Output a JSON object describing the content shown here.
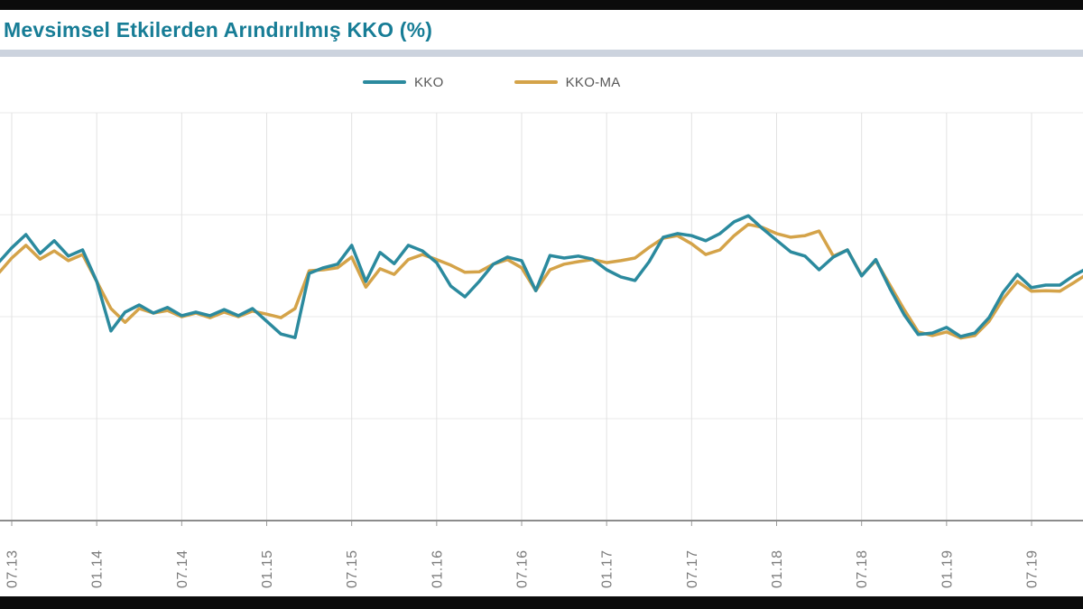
{
  "header": {
    "title": "Mevsimsel Etkilerden Arındırılmış KKO (%)"
  },
  "legend": {
    "items": [
      {
        "label": "KKO",
        "color": "#2b8a9e"
      },
      {
        "label": "KKO-MA",
        "color": "#d4a349"
      }
    ]
  },
  "chart_data": {
    "type": "line",
    "title": "Mevsimsel Etkilerden Arındırılmış KKO (%)",
    "xlabel": "",
    "ylabel": "",
    "x_months": [
      "06.13",
      "07.13",
      "08.13",
      "09.13",
      "10.13",
      "11.13",
      "12.13",
      "01.14",
      "02.14",
      "03.14",
      "04.14",
      "05.14",
      "06.14",
      "07.14",
      "08.14",
      "09.14",
      "10.14",
      "11.14",
      "12.14",
      "01.15",
      "02.15",
      "03.15",
      "04.15",
      "05.15",
      "06.15",
      "07.15",
      "08.15",
      "09.15",
      "10.15",
      "11.15",
      "12.15",
      "01.16",
      "02.16",
      "03.16",
      "04.16",
      "05.16",
      "06.16",
      "07.16",
      "08.16",
      "09.16",
      "10.16",
      "11.16",
      "12.16",
      "01.17",
      "02.17",
      "03.17",
      "04.17",
      "05.17",
      "06.17",
      "07.17",
      "08.17",
      "09.17",
      "10.17",
      "11.17",
      "12.17",
      "01.18",
      "02.18",
      "03.18",
      "04.18",
      "05.18",
      "06.18",
      "07.18",
      "08.18",
      "09.18",
      "10.18",
      "11.18",
      "12.18",
      "01.19",
      "02.19",
      "03.19",
      "04.19",
      "05.19",
      "06.19",
      "07.19",
      "08.19",
      "09.19",
      "10.19",
      "11.19"
    ],
    "x_tick_labels": [
      "07.13",
      "01.14",
      "07.14",
      "01.15",
      "07.15",
      "01.16",
      "07.16",
      "01.17",
      "07.17",
      "01.18",
      "07.18",
      "01.19",
      "07.19"
    ],
    "x_tick_start_index": 1,
    "x_tick_every": 6,
    "series": [
      {
        "name": "KKO",
        "color": "#2b8a9e",
        "values": [
          77.04,
          77.35,
          77.61,
          77.24,
          77.49,
          77.19,
          77.31,
          76.69,
          75.72,
          76.09,
          76.23,
          76.07,
          76.18,
          76.02,
          76.09,
          76.02,
          76.14,
          76.02,
          76.16,
          75.91,
          75.66,
          75.59,
          76.85,
          76.96,
          77.03,
          77.4,
          76.69,
          77.26,
          77.04,
          77.4,
          77.29,
          77.06,
          76.6,
          76.39,
          76.69,
          77.03,
          77.17,
          77.1,
          76.51,
          77.2,
          77.15,
          77.19,
          77.13,
          76.92,
          76.78,
          76.71,
          77.08,
          77.56,
          77.63,
          77.59,
          77.49,
          77.63,
          77.86,
          77.98,
          77.73,
          77.5,
          77.27,
          77.19,
          76.92,
          77.17,
          77.31,
          76.8,
          77.12,
          76.55,
          76.04,
          75.65,
          75.68,
          75.79,
          75.61,
          75.68,
          75.98,
          76.48,
          76.83,
          76.57,
          76.62,
          76.62,
          76.81,
          76.96
        ]
      },
      {
        "name": "KKO-MA",
        "color": "#d4a349",
        "values": [
          76.83,
          77.15,
          77.4,
          77.13,
          77.29,
          77.1,
          77.22,
          76.69,
          76.16,
          75.89,
          76.16,
          76.07,
          76.12,
          76.0,
          76.07,
          75.98,
          76.09,
          76.0,
          76.11,
          76.05,
          75.98,
          76.16,
          76.9,
          76.92,
          76.96,
          77.17,
          76.58,
          76.94,
          76.83,
          77.12,
          77.22,
          77.12,
          77.01,
          76.87,
          76.88,
          77.03,
          77.12,
          76.96,
          76.51,
          76.92,
          77.03,
          77.08,
          77.12,
          77.06,
          77.1,
          77.15,
          77.36,
          77.54,
          77.59,
          77.43,
          77.22,
          77.31,
          77.59,
          77.81,
          77.75,
          77.63,
          77.56,
          77.59,
          77.68,
          77.19,
          77.31,
          76.81,
          77.1,
          76.62,
          76.14,
          75.7,
          75.63,
          75.7,
          75.58,
          75.63,
          75.91,
          76.35,
          76.69,
          76.5,
          76.51,
          76.5,
          76.67,
          76.85
        ]
      }
    ],
    "ylim": [
      72,
      80
    ],
    "y_gridlines": [
      72,
      74,
      76,
      78,
      80
    ],
    "y_axis_labels_visible": false,
    "grid": true,
    "legend_position": "top-center"
  },
  "colors": {
    "title": "#177d96",
    "divider": "#ccd3de",
    "axis": "#8c8c8c",
    "gridline": "#e8e8e8",
    "tick_label": "#7c7c7c",
    "letterbox": "#0b0b0b"
  }
}
